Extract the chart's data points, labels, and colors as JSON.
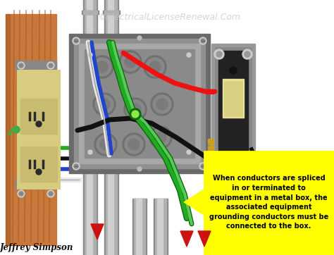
{
  "title": "©ElectricalLicenseRenewal.Com",
  "title_color": "#c8c8c8",
  "title_fontsize": 9,
  "author": "Jeffrey Simpson",
  "author_fontsize": 8.5,
  "bg_color": "#ffffff",
  "wood_color": "#c8783a",
  "wood_grain_color": "#a85a20",
  "wood_shadow": "#8a4818",
  "box_outer": "#6a6a6a",
  "box_rim": "#909090",
  "box_face": "#a8a8a8",
  "box_inner": "#8a8a8a",
  "conduit_light": "#d0d0d0",
  "conduit_mid": "#b0b0b0",
  "conduit_dark": "#888888",
  "outlet_body": "#d8cc80",
  "outlet_face": "#c8bc70",
  "outlet_dark": "#a09850",
  "outlet_slot": "#2a2a2a",
  "switch_outer": "#909090",
  "switch_body": "#404040",
  "switch_toggle": "#e0d890",
  "switch_toggle_inner": "#d0c870",
  "wire_red": "#ee1111",
  "wire_black": "#111111",
  "wire_white": "#e8e8e8",
  "wire_white_edge": "#aaaaaa",
  "wire_green_dark": "#116611",
  "wire_green": "#22aa22",
  "wire_green_light": "#55cc55",
  "wire_blue": "#2244cc",
  "callout_bg": "#ffff00",
  "callout_border": "#000000",
  "callout_text": "#000000",
  "callout_text_size": 7.0,
  "callout_lines": [
    "When conductors are spliced",
    "in or terminated to",
    "equipment in a metal box, the",
    "associated equipment",
    "grounding conductors must be",
    "connected to the box."
  ]
}
